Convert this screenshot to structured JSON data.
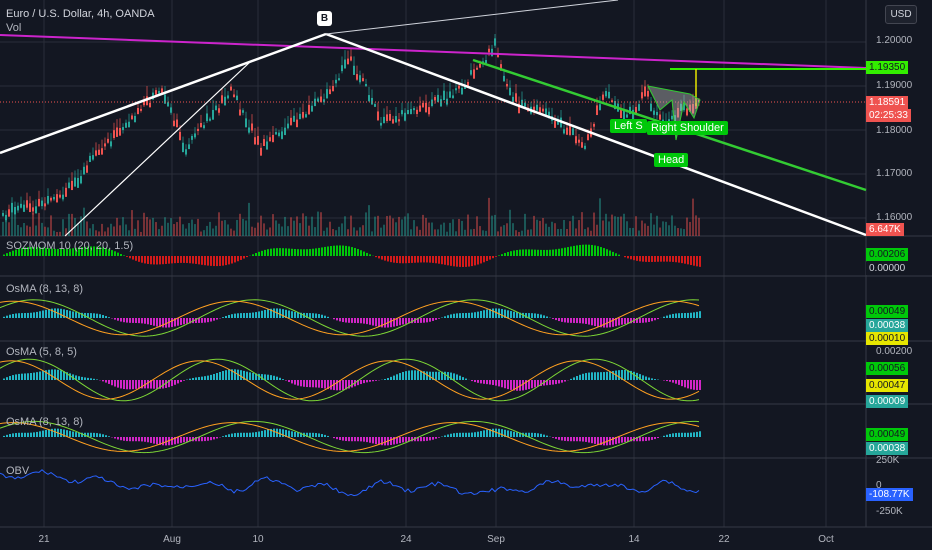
{
  "header": {
    "symbol_line": "Euro / U.S. Dollar, 4h, OANDA",
    "vol_label": "Vol",
    "currency_button": "USD"
  },
  "price_axis": {
    "ticks": [
      "1.20000",
      "1.19000",
      "1.18000",
      "1.17000",
      "1.16000"
    ]
  },
  "price_labels": {
    "target": "1.19350",
    "last": "1.18591",
    "countdown": "02:25:33",
    "volume": "6.647K"
  },
  "annotations": {
    "point_b": "B",
    "left_shoulder": "Left S",
    "right_shoulder": "Right Shoulder",
    "head": "Head"
  },
  "indicators": {
    "soz": {
      "title": "SOZMOM",
      "params": "10 (20, 20, 1.5)",
      "values": [
        "0.00206",
        "0.00000"
      ]
    },
    "osma1": {
      "title": "OsMA (8, 13, 8)",
      "values": [
        "0.00049",
        "0.00038",
        "0.00010"
      ]
    },
    "osma2": {
      "title": "OsMA (5, 8, 5)",
      "axis": "0.00200",
      "values": [
        "0.00056",
        "0.00047",
        "0.00009"
      ]
    },
    "osma3": {
      "title": "OsMA (8, 13, 8)",
      "values": [
        "0.00049",
        "0.00038"
      ]
    },
    "obv": {
      "title": "OBV",
      "axis_top": "250K",
      "axis_mid": "0",
      "axis_bottom": "-250K",
      "value": "-108.77K"
    }
  },
  "time_axis": {
    "labels": [
      "21",
      "Aug",
      "10",
      "24",
      "Sep",
      "14",
      "22",
      "Oct"
    ]
  },
  "colors": {
    "background": "#131722",
    "up": "#26a69a",
    "down": "#ef5350",
    "trend_white": "#ffffff",
    "trend_magenta": "#cc24cc",
    "channel_green": "#33cc33",
    "target_green": "#33ee00",
    "label_green": "#00c80a",
    "obv_line": "#2962ff"
  }
}
